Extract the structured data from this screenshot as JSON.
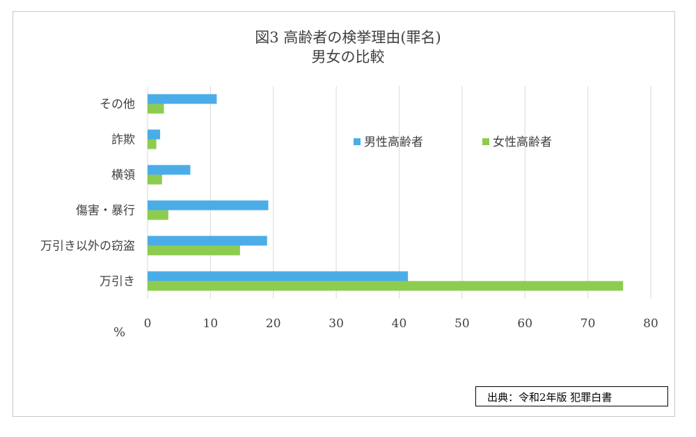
{
  "chart_data": {
    "type": "bar",
    "orientation": "horizontal",
    "title": "図3 高齢者の検挙理由(罪名)",
    "subtitle": "男女の比較",
    "categories": [
      "その他",
      "詐欺",
      "横領",
      "傷害・暴行",
      "万引き以外の窃盗",
      "万引き"
    ],
    "series": [
      {
        "name": "男性高齢者",
        "color": "#4BADE8",
        "values": [
          11.0,
          2.0,
          6.8,
          19.2,
          19.0,
          41.4
        ]
      },
      {
        "name": "女性高齢者",
        "color": "#8DCC50",
        "values": [
          2.6,
          1.4,
          2.3,
          3.3,
          14.7,
          75.6
        ]
      }
    ],
    "x_ticks": [
      0,
      10,
      20,
      30,
      40,
      50,
      60,
      70,
      80
    ],
    "xlim": [
      0,
      80
    ],
    "unit_label": "%",
    "grid": true,
    "legend_position": "top-right inside plot"
  },
  "source_note": "出典：令和2年版 犯罪白書"
}
